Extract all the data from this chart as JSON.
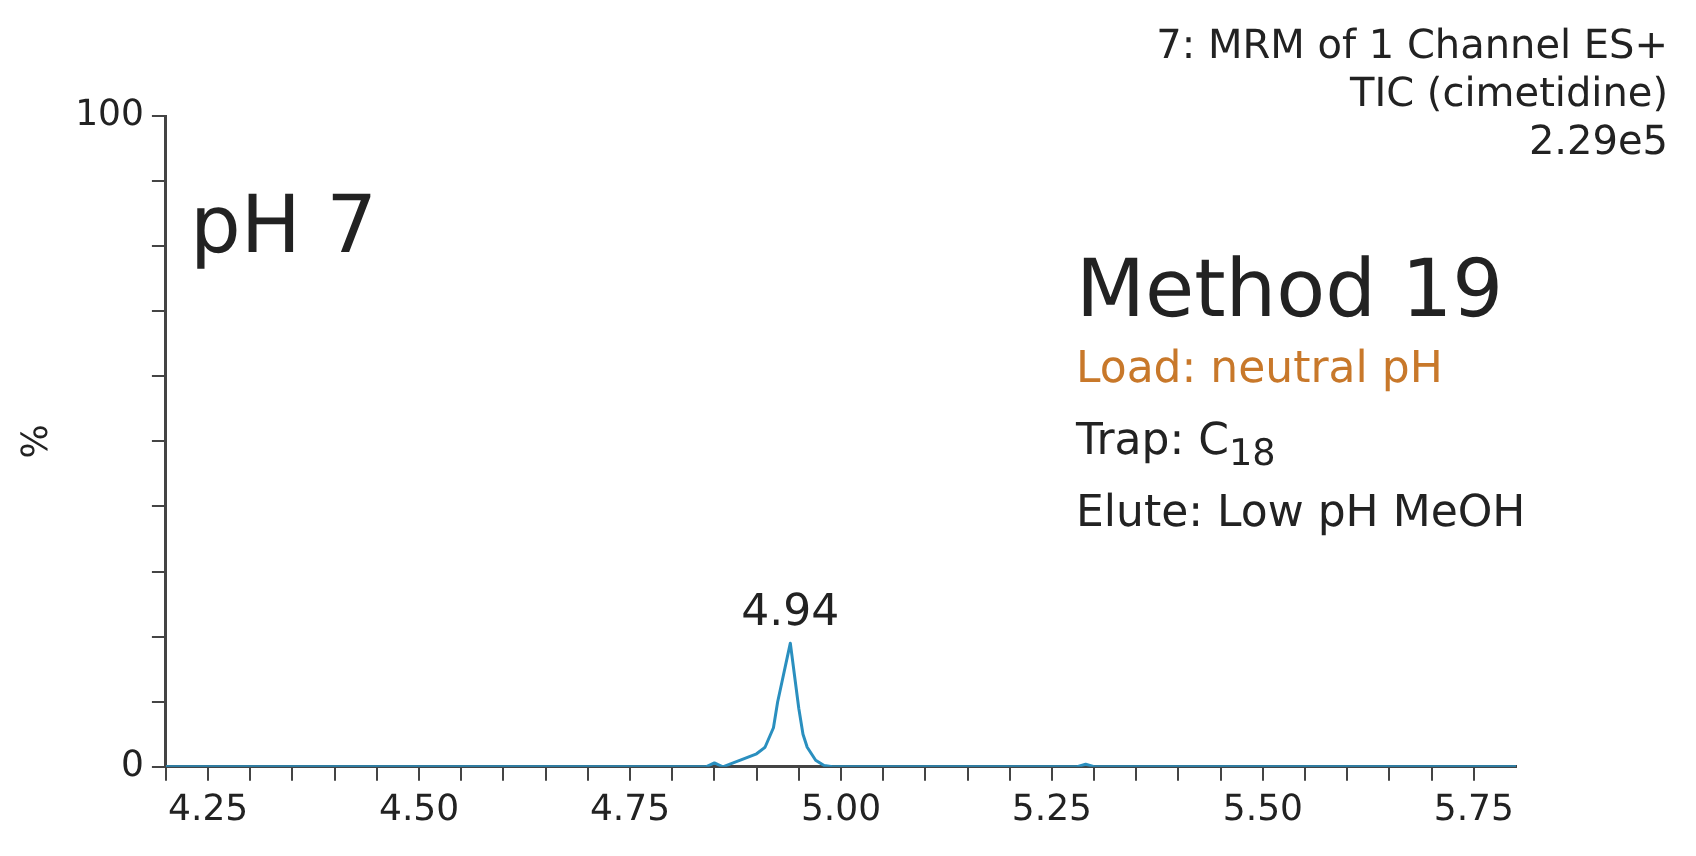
{
  "chart_data": {
    "type": "line",
    "ylabel": "%",
    "x": [
      4.2,
      4.5,
      4.8,
      4.84,
      4.85,
      4.86,
      4.87,
      4.88,
      4.89,
      4.9,
      4.91,
      4.92,
      4.925,
      4.93,
      4.935,
      4.94,
      4.945,
      4.95,
      4.955,
      4.96,
      4.97,
      4.98,
      4.99,
      5.1,
      5.28,
      5.29,
      5.3,
      5.31,
      5.5,
      5.8
    ],
    "series": [
      {
        "color": "#2a8fbf",
        "values": [
          0,
          0,
          0,
          0,
          0.6,
          0,
          0.5,
          1,
          1.5,
          2,
          3,
          6,
          10,
          13,
          16,
          19,
          14,
          9,
          5,
          3,
          1,
          0.2,
          0,
          0,
          0,
          0.4,
          0,
          0,
          0,
          0
        ]
      }
    ],
    "xlim": [
      4.2,
      5.8
    ],
    "xticks": [
      {
        "value": 4.2,
        "label": null
      },
      4.25,
      {
        "value": 4.3,
        "label": null
      },
      {
        "value": 4.35,
        "label": null
      },
      {
        "value": 4.4,
        "label": null
      },
      {
        "value": 4.45,
        "label": null
      },
      {
        "value": 4.5,
        "label": "4.50"
      },
      {
        "value": 4.55,
        "label": null
      },
      {
        "value": 4.6,
        "label": null
      },
      {
        "value": 4.65,
        "label": null
      },
      {
        "value": 4.7,
        "label": null
      },
      4.75,
      {
        "value": 4.8,
        "label": null
      },
      {
        "value": 4.85,
        "label": null
      },
      {
        "value": 4.9,
        "label": null
      },
      {
        "value": 4.95,
        "label": null
      },
      {
        "value": 5.0,
        "label": "5.00"
      },
      {
        "value": 5.05,
        "label": null
      },
      {
        "value": 5.1,
        "label": null
      },
      {
        "value": 5.15,
        "label": null
      },
      {
        "value": 5.2,
        "label": null
      },
      5.25,
      {
        "value": 5.3,
        "label": null
      },
      {
        "value": 5.35,
        "label": null
      },
      {
        "value": 5.4,
        "label": null
      },
      {
        "value": 5.45,
        "label": null
      },
      {
        "value": 5.5,
        "label": "5.50"
      },
      {
        "value": 5.55,
        "label": null
      },
      {
        "value": 5.6,
        "label": null
      },
      {
        "value": 5.65,
        "label": null
      },
      {
        "value": 5.7,
        "label": null
      },
      5.75
    ],
    "ylim": [
      0,
      100
    ],
    "yticks": [
      0,
      {
        "value": 10,
        "label": null
      },
      {
        "value": 20,
        "label": null
      },
      {
        "value": 30,
        "label": null
      },
      {
        "value": 40,
        "label": null
      },
      {
        "value": 50,
        "label": null
      },
      {
        "value": 60,
        "label": null
      },
      {
        "value": 70,
        "label": null
      },
      {
        "value": 80,
        "label": null
      },
      {
        "value": 90,
        "label": null
      },
      100
    ],
    "grid": false,
    "legend": false,
    "marker": "none",
    "line_style": "solid",
    "annotations": [
      {
        "text": "4.94",
        "x": 4.94,
        "y": 19
      },
      "7: MRM of 1 Channel ES+",
      "TIC (cimetidine)",
      "2.29e5",
      "pH 7",
      "Method 19",
      "Load: neutral pH",
      "Trap: C$_{18}$",
      "Elute: Low pH MeOH"
    ]
  }
}
